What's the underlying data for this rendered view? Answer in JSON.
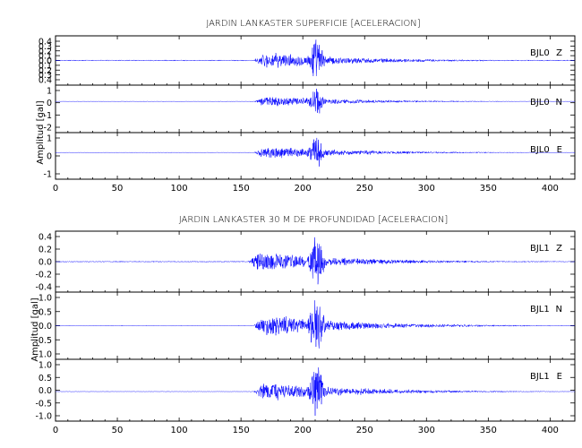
{
  "chart_data": [
    {
      "type": "line",
      "title": "JARDIN LANKASTER SUPERFICIE [ACELERACION]",
      "ylabel": "Amplitud [gal]",
      "xlabel": "",
      "xlim": [
        0,
        420
      ],
      "xticks": [
        "0",
        "50",
        "100",
        "150",
        "200",
        "250",
        "300",
        "350",
        "400"
      ],
      "panels": [
        {
          "station": "BJL0",
          "component": "Z",
          "ylim": [
            -0.45,
            0.45
          ],
          "yticks": [
            "0.4",
            "0.3",
            "0.2",
            "0.1",
            "0.0",
            "0.1",
            "0.2",
            "0.3",
            "0.4"
          ],
          "onset_s": 160,
          "peak_s": 211,
          "peak_amplitude": 0.42,
          "noise_amplitude": 0.01
        },
        {
          "station": "BJL0",
          "component": "N",
          "ylim": [
            -2.1,
            1.1
          ],
          "yticks": [
            "1",
            "0",
            "-1",
            "-2"
          ],
          "onset_s": 160,
          "peak_s": 211,
          "peak_amplitude": 1.1,
          "noise_amplitude": 0.02
        },
        {
          "station": "BJL0",
          "component": "E",
          "ylim": [
            -1.6,
            1.2
          ],
          "yticks": [
            "1",
            "0",
            "-1"
          ],
          "onset_s": 160,
          "peak_s": 211,
          "peak_amplitude": 1.35,
          "noise_amplitude": 0.02
        }
      ]
    },
    {
      "type": "line",
      "title": "JARDIN LANKASTER 30 M DE PROFUNDIDAD [ACELERACION]",
      "ylabel": "Amplitud [gal]",
      "xlabel": "",
      "xlim": [
        0,
        420
      ],
      "xticks": [
        "0",
        "50",
        "100",
        "150",
        "200",
        "250",
        "300",
        "350",
        "400"
      ],
      "panels": [
        {
          "station": "BJL1",
          "component": "Z",
          "ylim": [
            -0.5,
            0.5
          ],
          "yticks": [
            "0.4",
            "0.2",
            "0.0",
            "-0.2",
            "-0.4"
          ],
          "onset_s": 155,
          "peak_s": 211,
          "peak_amplitude": 0.45,
          "noise_amplitude": 0.008
        },
        {
          "station": "BJL1",
          "component": "N",
          "ylim": [
            -1.1,
            1.1
          ],
          "yticks": [
            "1.0",
            "0.5",
            "0.0",
            "-0.5",
            "-1.0"
          ],
          "onset_s": 160,
          "peak_s": 211,
          "peak_amplitude": 1.0,
          "noise_amplitude": 0.01
        },
        {
          "station": "BJL1",
          "component": "E",
          "ylim": [
            -1.1,
            1.2
          ],
          "yticks": [
            "1.0",
            "0.5",
            "0.0",
            "-0.5",
            "-1.0"
          ],
          "onset_s": 160,
          "peak_s": 211,
          "peak_amplitude": 1.1,
          "noise_amplitude": 0.01
        }
      ]
    }
  ],
  "colors": {
    "trace": "#0000ff",
    "axes": "#000000"
  }
}
